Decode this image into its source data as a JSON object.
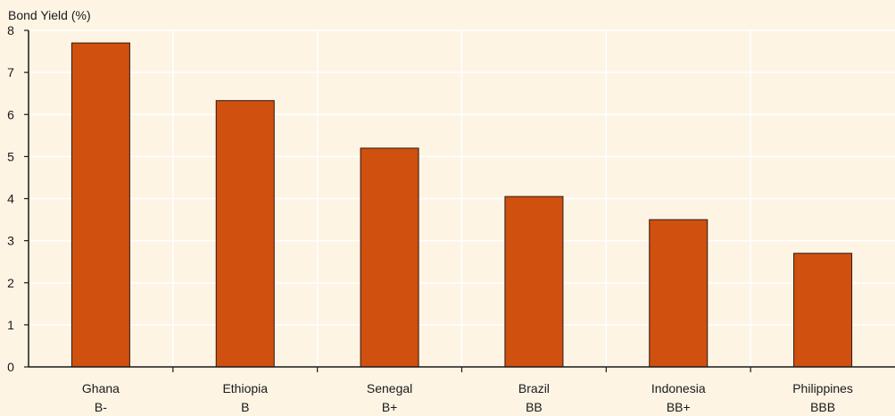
{
  "chart_data": {
    "type": "bar",
    "title": "",
    "ylabel": "Bond Yield (%)",
    "xlabel": "",
    "ylim": [
      0,
      8
    ],
    "yticks": [
      0,
      1,
      2,
      3,
      4,
      5,
      6,
      7,
      8
    ],
    "grid": true,
    "categories": [
      {
        "name": "Ghana",
        "rating": "B-"
      },
      {
        "name": "Ethiopia",
        "rating": "B"
      },
      {
        "name": "Senegal",
        "rating": "B+"
      },
      {
        "name": "Brazil",
        "rating": "BB"
      },
      {
        "name": "Indonesia",
        "rating": "BB+"
      },
      {
        "name": "Philippines",
        "rating": "BBB"
      }
    ],
    "values": [
      7.7,
      6.33,
      5.2,
      4.05,
      3.5,
      2.7
    ],
    "colors": {
      "bar": "#d0500f",
      "bar_stroke": "#2a1a10",
      "background": "#fdf4e4",
      "grid": "#ffffff",
      "axis": "#1a1a1a"
    }
  }
}
